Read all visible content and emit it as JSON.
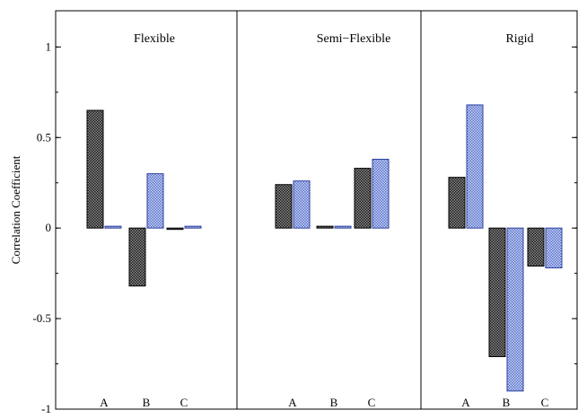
{
  "chart_data": {
    "type": "bar",
    "ylabel": "Correlation Coefficient",
    "ylim": [
      -1,
      1.2
    ],
    "yticks": [
      1,
      0.5,
      0,
      -0.5,
      -1
    ],
    "ytick_labels": [
      "1",
      "0.5",
      "0",
      "-0.5",
      "-1"
    ],
    "grid": false,
    "legend": "none",
    "series_colors": [
      "#4a4a4a",
      "#6f86d6"
    ],
    "series_stroke": [
      "#000000",
      "#2c3f9e"
    ],
    "panels": [
      {
        "title": "Flexible",
        "categories": [
          "A",
          "B",
          "C"
        ],
        "series": [
          {
            "values": [
              0.65,
              -0.32,
              0.0
            ]
          },
          {
            "values": [
              0.01,
              0.3,
              0.01
            ]
          }
        ]
      },
      {
        "title": "Semi−Flexible",
        "categories": [
          "A",
          "B",
          "C"
        ],
        "series": [
          {
            "values": [
              0.24,
              0.01,
              0.33
            ]
          },
          {
            "values": [
              0.26,
              0.01,
              0.38
            ]
          }
        ]
      },
      {
        "title": "Rigid",
        "categories": [
          "A",
          "B",
          "C"
        ],
        "series": [
          {
            "values": [
              0.28,
              -0.71,
              -0.21
            ]
          },
          {
            "values": [
              0.68,
              -0.9,
              -0.22
            ]
          }
        ]
      }
    ]
  }
}
